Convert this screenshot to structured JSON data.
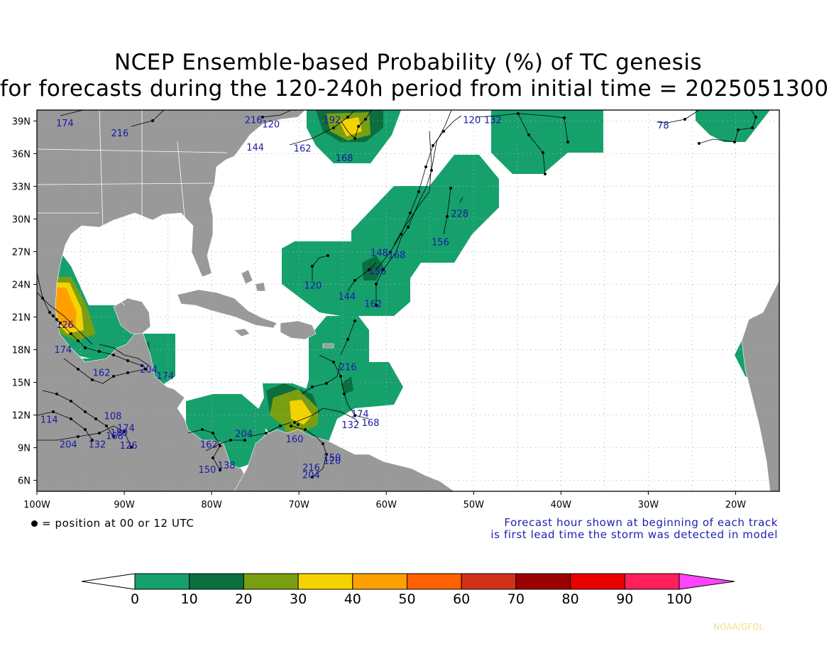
{
  "title_line1": "NCEP Ensemble-based Probability (%) of TC genesis",
  "title_line2": "for forecasts during the 120-240h period from initial time = 2025051300",
  "lat_labels": [
    "39N",
    "36N",
    "33N",
    "30N",
    "27N",
    "24N",
    "21N",
    "18N",
    "15N",
    "12N",
    "9N",
    "6N"
  ],
  "lat_values": [
    39,
    36,
    33,
    30,
    27,
    24,
    21,
    18,
    15,
    12,
    9,
    6
  ],
  "lon_labels": [
    "100W",
    "90W",
    "80W",
    "70W",
    "60W",
    "50W",
    "40W",
    "30W",
    "20W"
  ],
  "lon_values": [
    -100,
    -90,
    -80,
    -70,
    -60,
    -50,
    -40,
    -30,
    -20
  ],
  "extent": {
    "lon_min": -100,
    "lon_max": -15,
    "lat_min": 5,
    "lat_max": 40
  },
  "legend_note": "= position at 00 or 12 UTC",
  "forecast_note_line1": "Forecast hour shown at beginning of each track",
  "forecast_note_line2": "is first lead time the storm was detected in model",
  "colorbar": {
    "labels": [
      "0",
      "10",
      "20",
      "30",
      "40",
      "50",
      "60",
      "70",
      "80",
      "90",
      "100"
    ],
    "colors": [
      "#ffffff",
      "#16a06c",
      "#0b6e3f",
      "#7a9e12",
      "#f5d300",
      "#ffa000",
      "#ff6000",
      "#d03218",
      "#9c0000",
      "#e80000",
      "#ff1f5a",
      "#ff44ff"
    ]
  },
  "credit": "NOAA/GFDL",
  "colors": {
    "land": "#999999",
    "ocean": "#ffffff",
    "track": "#000000",
    "label": "#1a1aa6"
  },
  "fh_labels": [
    {
      "t": "174",
      "lon": -96.8,
      "lat": 38.5
    },
    {
      "t": "216",
      "lon": -90.5,
      "lat": 37.6
    },
    {
      "t": "216",
      "lon": -75.2,
      "lat": 38.8
    },
    {
      "t": "120",
      "lon": -73.2,
      "lat": 38.4
    },
    {
      "t": "192",
      "lon": -66.2,
      "lat": 38.8
    },
    {
      "t": "144",
      "lon": -75.0,
      "lat": 36.3
    },
    {
      "t": "162",
      "lon": -69.6,
      "lat": 36.2
    },
    {
      "t": "168",
      "lon": -64.8,
      "lat": 35.3
    },
    {
      "t": "120",
      "lon": -50.2,
      "lat": 38.8
    },
    {
      "t": "132",
      "lon": -47.8,
      "lat": 38.8
    },
    {
      "t": "78",
      "lon": -28.3,
      "lat": 38.3
    },
    {
      "t": "228",
      "lon": -51.6,
      "lat": 30.2
    },
    {
      "t": "156",
      "lon": -53.8,
      "lat": 27.6
    },
    {
      "t": "148",
      "lon": -60.8,
      "lat": 26.6
    },
    {
      "t": "168",
      "lon": -58.8,
      "lat": 26.4
    },
    {
      "t": "156",
      "lon": -61.0,
      "lat": 24.9
    },
    {
      "t": "120",
      "lon": -68.4,
      "lat": 23.6
    },
    {
      "t": "144",
      "lon": -64.5,
      "lat": 22.6
    },
    {
      "t": "162",
      "lon": -61.5,
      "lat": 21.9
    },
    {
      "t": "216",
      "lon": -64.4,
      "lat": 16.1
    },
    {
      "t": "174",
      "lon": -63.0,
      "lat": 11.8
    },
    {
      "t": "132",
      "lon": -64.1,
      "lat": 10.8
    },
    {
      "t": "168",
      "lon": -61.8,
      "lat": 11.0
    },
    {
      "t": "160",
      "lon": -70.5,
      "lat": 9.5
    },
    {
      "t": "150",
      "lon": -66.2,
      "lat": 7.8
    },
    {
      "t": "120",
      "lon": -66.2,
      "lat": 7.5
    },
    {
      "t": "216",
      "lon": -68.6,
      "lat": 6.9
    },
    {
      "t": "204",
      "lon": -68.6,
      "lat": 6.2
    },
    {
      "t": "204",
      "lon": -76.3,
      "lat": 10.0
    },
    {
      "t": "162",
      "lon": -80.3,
      "lat": 9.0
    },
    {
      "t": "138",
      "lon": -78.3,
      "lat": 7.1
    },
    {
      "t": "150",
      "lon": -80.5,
      "lat": 6.7
    },
    {
      "t": "108",
      "lon": -91.3,
      "lat": 11.6
    },
    {
      "t": "174",
      "lon": -89.8,
      "lat": 10.5
    },
    {
      "t": "180",
      "lon": -90.6,
      "lat": 10.1
    },
    {
      "t": "168",
      "lon": -91.1,
      "lat": 9.8
    },
    {
      "t": "132",
      "lon": -93.1,
      "lat": 9.0
    },
    {
      "t": "126",
      "lon": -89.5,
      "lat": 8.9
    },
    {
      "t": "204",
      "lon": -96.4,
      "lat": 9.0
    },
    {
      "t": "114",
      "lon": -98.6,
      "lat": 11.3
    },
    {
      "t": "174",
      "lon": -97.0,
      "lat": 17.7
    },
    {
      "t": "162",
      "lon": -92.6,
      "lat": 15.6
    },
    {
      "t": "204",
      "lon": -87.2,
      "lat": 15.9
    },
    {
      "t": "174",
      "lon": -85.3,
      "lat": 15.3
    },
    {
      "t": "126",
      "lon": -96.8,
      "lat": 20.0
    }
  ]
}
